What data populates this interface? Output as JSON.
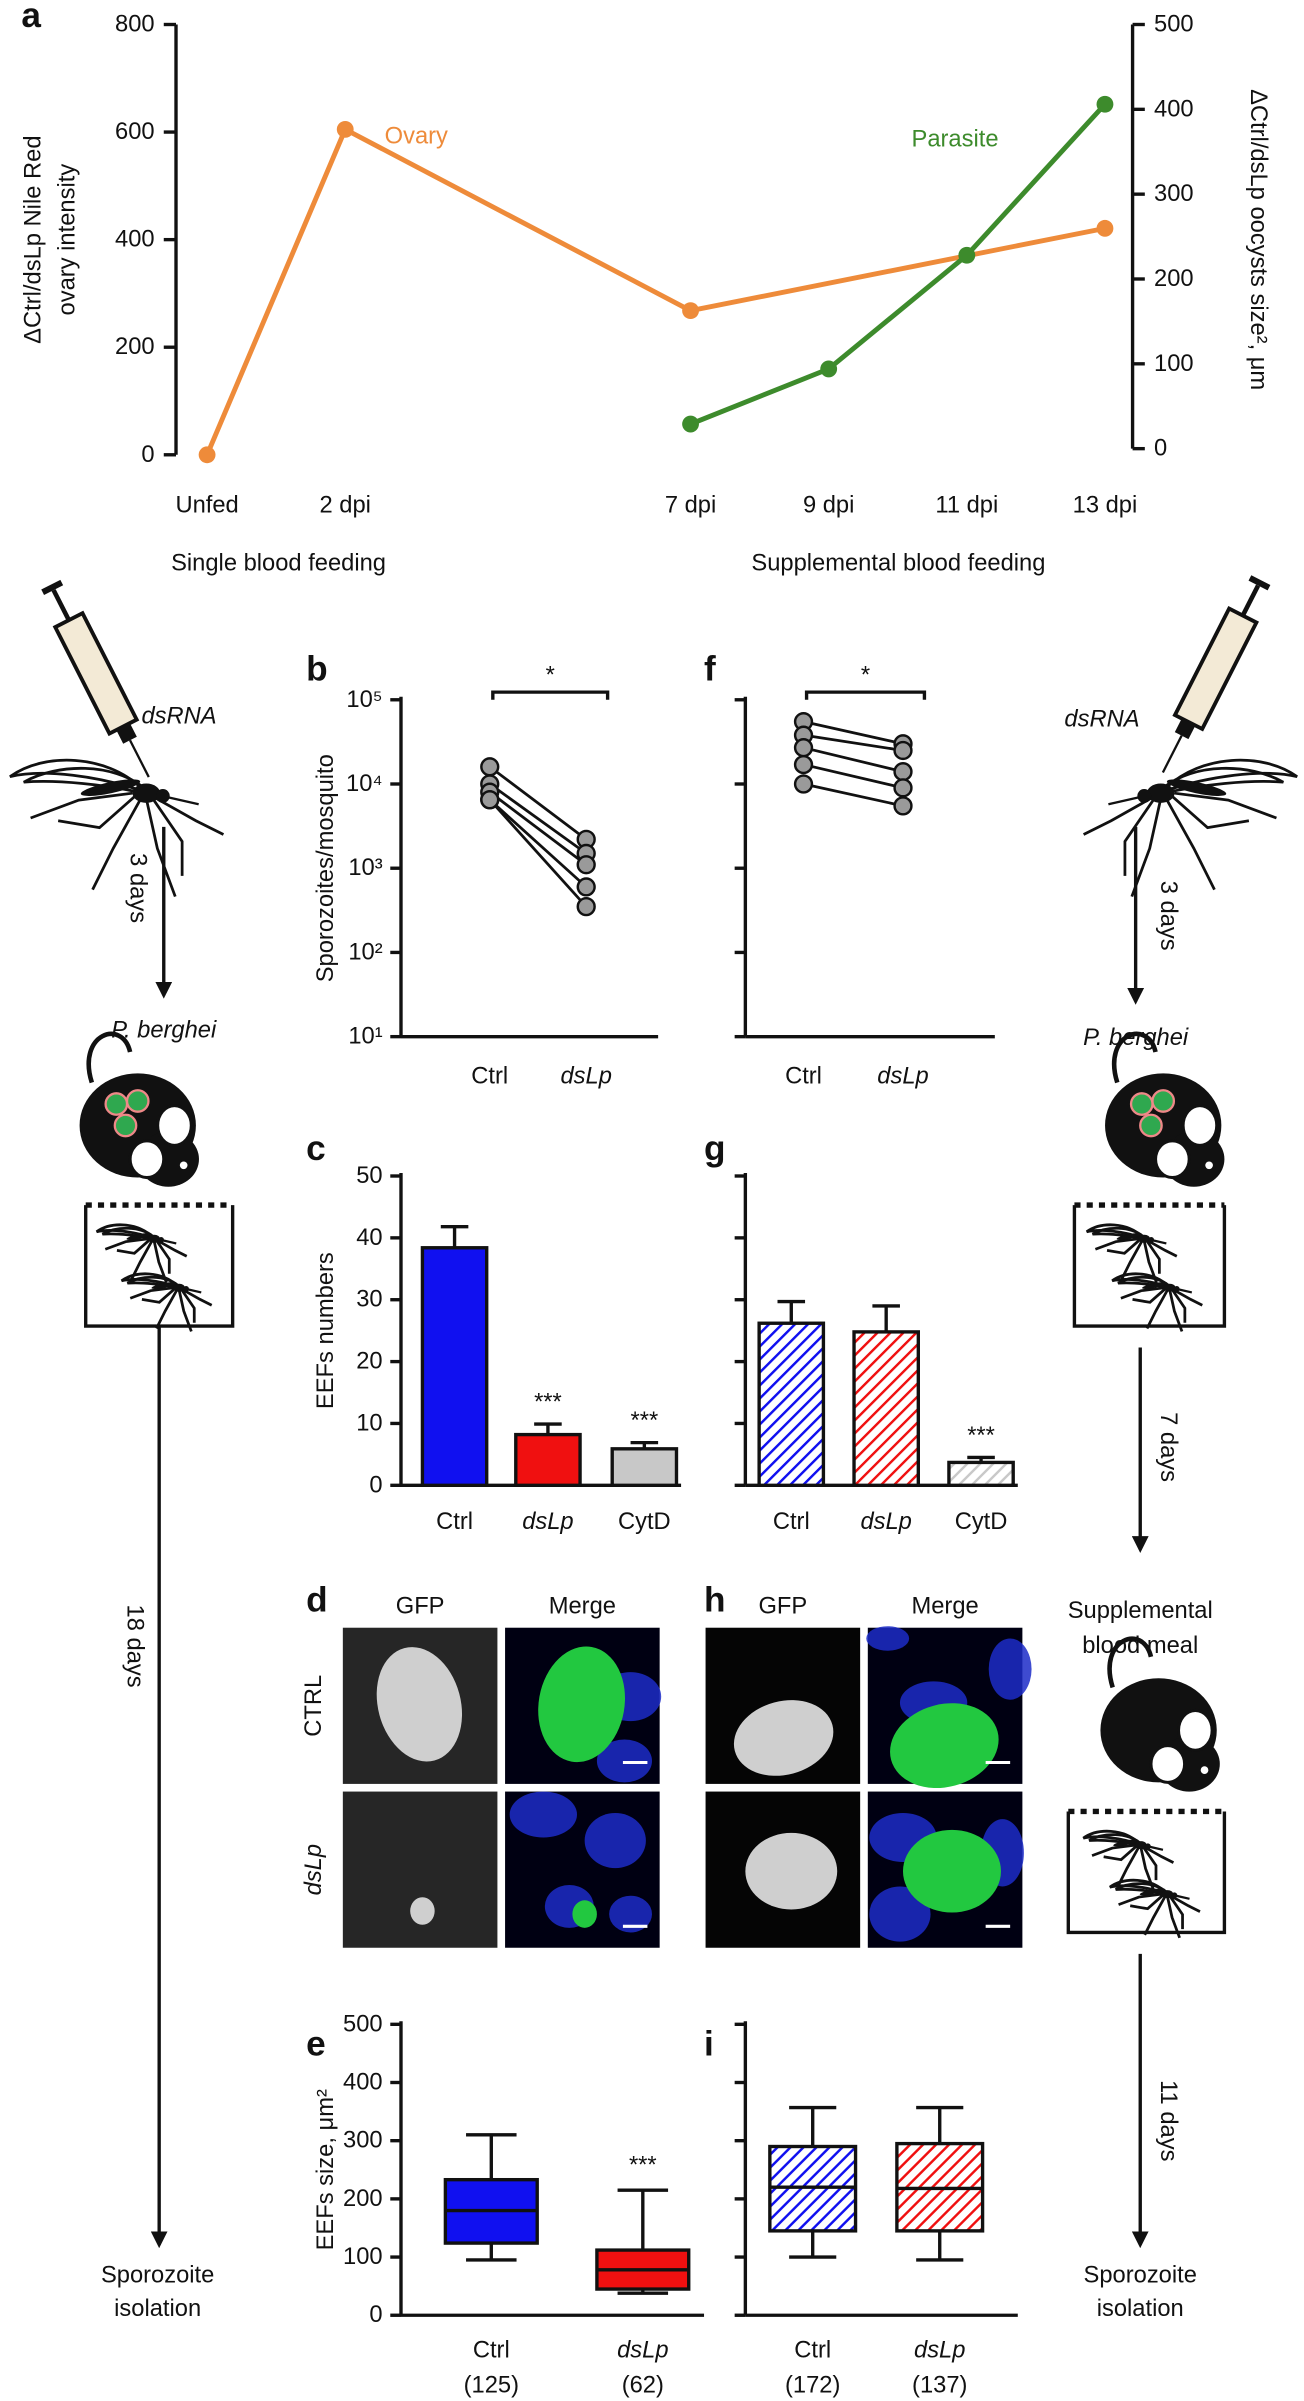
{
  "chart_data": [
    {
      "type": "line",
      "panel": "a",
      "ylabel": [
        "ΔCtrl/dsLp Nile Red",
        "ovary intensity"
      ],
      "y2label": "ΔCtrl/dsLp oocysts size², μm",
      "xlim": [
        -0.45,
        13.4
      ],
      "xticks": [
        {
          "value": 0,
          "label": "Unfed"
        },
        {
          "value": 2,
          "label": "2 dpi"
        },
        {
          "value": 7,
          "label": "7 dpi"
        },
        {
          "value": 9,
          "label": "9 dpi"
        },
        {
          "value": 11,
          "label": "11 dpi"
        },
        {
          "value": 13,
          "label": "13 dpi"
        }
      ],
      "ylim": [
        0,
        800
      ],
      "yticks": [
        0,
        200,
        400,
        600,
        800
      ],
      "y2lim": [
        0,
        500
      ],
      "y2ticks": [
        0,
        100,
        200,
        300,
        400,
        500
      ],
      "annotations": [
        "Single blood feeding",
        "Supplemental blood feeding"
      ],
      "series": [
        {
          "name": "Ovary",
          "color": "#ee8b3a",
          "x": [
            0,
            2,
            7,
            13
          ],
          "values": [
            0,
            605,
            268,
            421
          ]
        },
        {
          "name": "Parasite",
          "color": "#3d8b2c",
          "axis": "y2",
          "x": [
            7,
            9,
            11,
            13
          ],
          "values": [
            29,
            94,
            228,
            406
          ]
        }
      ]
    },
    {
      "type": "scatter",
      "panel": "b",
      "ylabel": "Sporozoites/mosquito",
      "log": true,
      "ylim": [
        10,
        100000
      ],
      "yticks": [
        {
          "value": 10,
          "label": "10¹"
        },
        {
          "value": 100,
          "label": "10²"
        },
        {
          "value": 1000,
          "label": "10³"
        },
        {
          "value": 10000,
          "label": "10⁴"
        },
        {
          "value": 100000,
          "label": "10⁵"
        }
      ],
      "categories": [
        "Ctrl",
        "dsLp"
      ],
      "color": "#9a9a9a",
      "significance": "*",
      "series": [
        {
          "values": [
            16000,
            2200
          ]
        },
        {
          "values": [
            10000,
            1500
          ]
        },
        {
          "values": [
            8000,
            1100
          ]
        },
        {
          "values": [
            6500,
            600
          ]
        },
        {
          "values": [
            6500,
            350
          ]
        }
      ]
    },
    {
      "type": "scatter",
      "panel": "f",
      "log": true,
      "ytick_labels": false,
      "ylim": [
        10,
        100000
      ],
      "yticks": [
        10,
        100,
        1000,
        10000,
        100000
      ],
      "categories": [
        "Ctrl",
        "dsLp"
      ],
      "color": "#9a9a9a",
      "significance": "*",
      "series": [
        {
          "values": [
            55000,
            30000
          ]
        },
        {
          "values": [
            38000,
            25000
          ]
        },
        {
          "values": [
            27000,
            14000
          ]
        },
        {
          "values": [
            17000,
            9000
          ]
        },
        {
          "values": [
            10000,
            5500
          ]
        }
      ]
    },
    {
      "type": "bar",
      "panel": "c",
      "ylabel": "EEFs numbers",
      "ylim": [
        0,
        50
      ],
      "yticks": [
        0,
        10,
        20,
        30,
        40,
        50
      ],
      "categories": [
        "Ctrl",
        "dsLp",
        "CytD"
      ],
      "values": [
        38.4,
        8.2,
        5.9
      ],
      "errors": [
        3.4,
        1.7,
        1.0
      ],
      "colors": [
        "#1010f0",
        "#f01010",
        "#c8c8c8"
      ],
      "annotations": [
        null,
        "***",
        "***"
      ]
    },
    {
      "type": "bar",
      "panel": "g",
      "ytick_labels": false,
      "hatch": true,
      "ylim": [
        0,
        50
      ],
      "yticks": [
        0,
        10,
        20,
        30,
        40,
        50
      ],
      "categories": [
        "Ctrl",
        "dsLp",
        "CytD"
      ],
      "values": [
        26.2,
        24.8,
        3.7
      ],
      "errors": [
        3.5,
        4.2,
        0.8
      ],
      "colors": [
        "#1010f0",
        "#f01010",
        "#c8c8c8"
      ],
      "annotations": [
        null,
        null,
        "***"
      ]
    },
    {
      "type": "box",
      "panel": "e",
      "ylabel": "EEFs size, μm²",
      "ylim": [
        0,
        500
      ],
      "yticks": [
        0,
        100,
        200,
        300,
        400,
        500
      ],
      "categories": [
        "Ctrl",
        "dsLp"
      ],
      "n_labels": [
        "(125)",
        "(62)"
      ],
      "colors": [
        "#1010f0",
        "#f01010"
      ],
      "annotations": [
        null,
        "***"
      ],
      "boxes": [
        {
          "min": 95,
          "q1": 124,
          "median": 180,
          "q3": 233,
          "max": 310
        },
        {
          "min": 38,
          "q1": 45,
          "median": 78,
          "q3": 112,
          "max": 215
        }
      ]
    },
    {
      "type": "box",
      "panel": "i",
      "ytick_labels": false,
      "hatch": true,
      "ylim": [
        0,
        500
      ],
      "yticks": [
        0,
        100,
        200,
        300,
        400,
        500
      ],
      "categories": [
        "Ctrl",
        "dsLp"
      ],
      "n_labels": [
        "(172)",
        "(137)"
      ],
      "colors": [
        "#1010f0",
        "#f01010"
      ],
      "boxes": [
        {
          "min": 100,
          "q1": 145,
          "median": 220,
          "q3": 290,
          "max": 357
        },
        {
          "min": 95,
          "q1": 145,
          "median": 218,
          "q3": 295,
          "max": 357
        }
      ]
    }
  ],
  "micrographs": [
    {
      "panel": "d",
      "columns": [
        "GFP",
        "Merge"
      ],
      "rows": [
        "CTRL",
        "dsLp"
      ]
    },
    {
      "panel": "h",
      "columns": [
        "GFP",
        "Merge"
      ]
    }
  ],
  "schematic": {
    "left": {
      "injection": "dsRNA",
      "wait": "3 days",
      "infection": "P. berghei",
      "development": "18 days",
      "outcome": [
        "Sporozoite",
        "isolation"
      ]
    },
    "right": {
      "injection": "dsRNA",
      "wait": "3 days",
      "infection": "P. berghei",
      "development": "7 days",
      "boost": [
        "Supplemental",
        "blood meal"
      ],
      "final": "11 days",
      "outcome": [
        "Sporozoite",
        "isolation"
      ]
    }
  }
}
